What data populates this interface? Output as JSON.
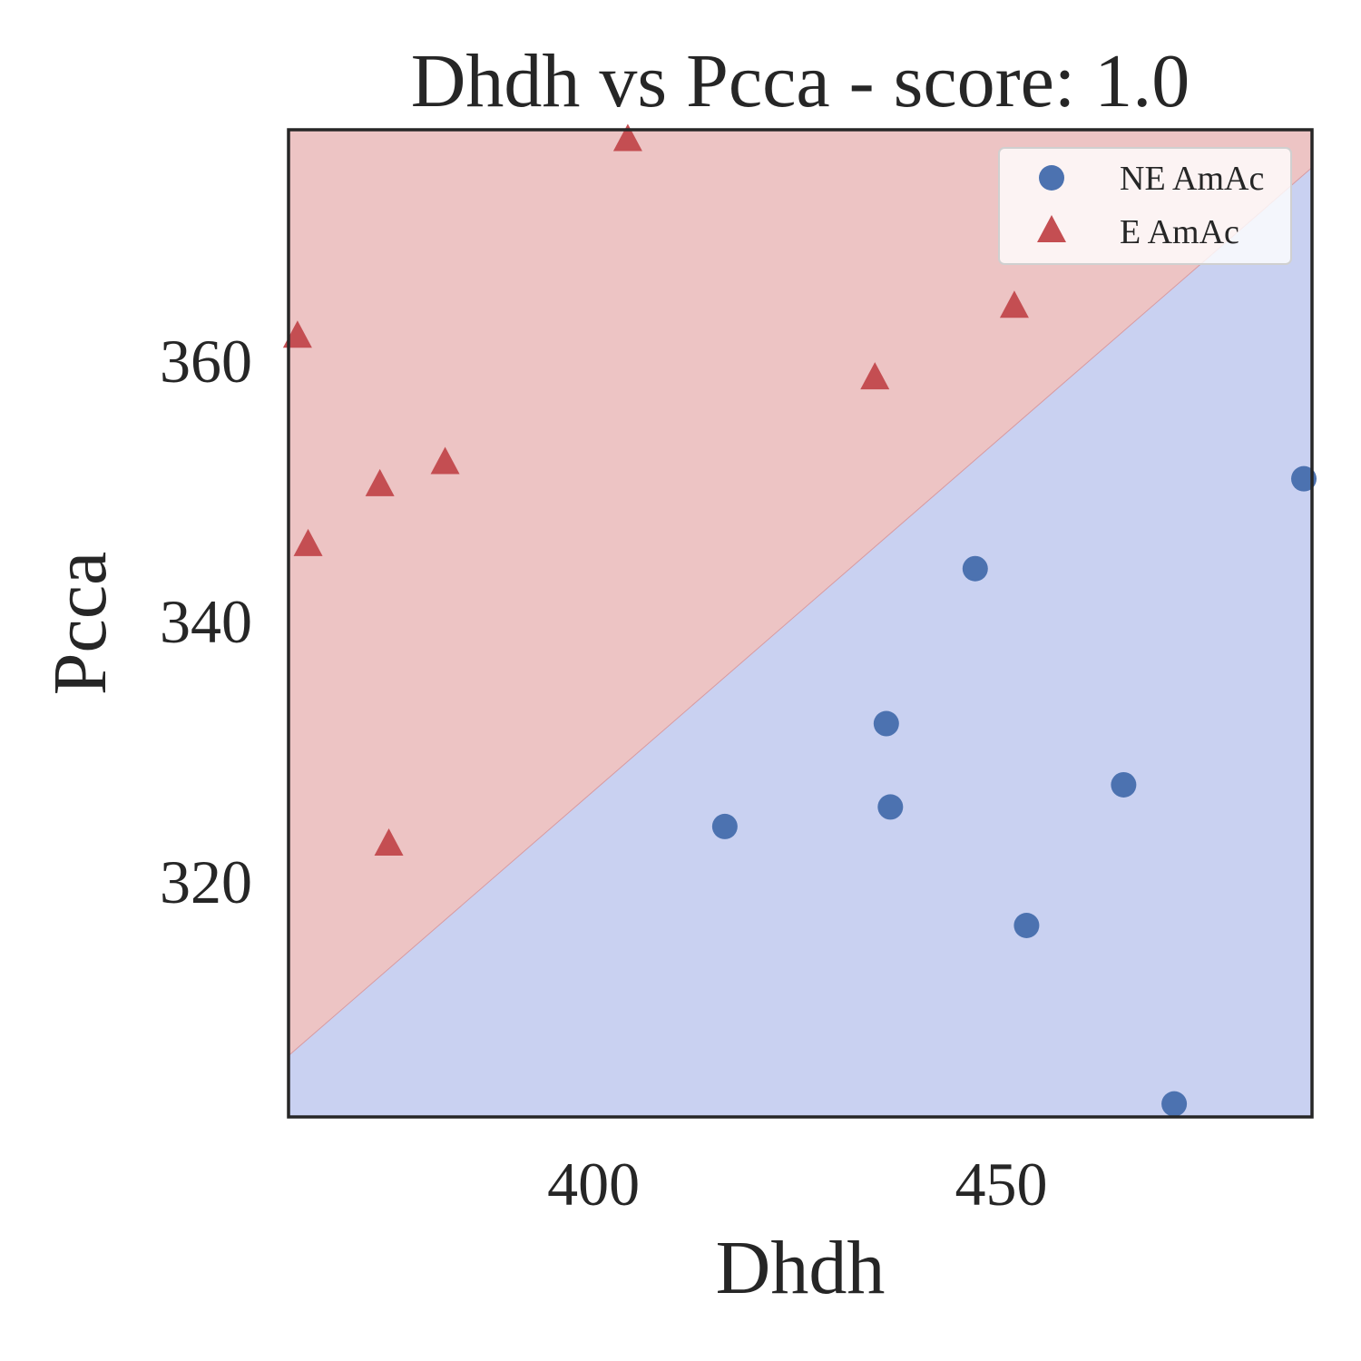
{
  "chart_data": {
    "type": "scatter",
    "title": "Dhdh vs Pcca - score: 1.0",
    "xlabel": "Dhdh",
    "ylabel": "Pcca",
    "xlim": [
      362.6,
      488.1
    ],
    "ylim": [
      301.9,
      377.7
    ],
    "xticks": [
      400,
      450
    ],
    "yticks": [
      320,
      340,
      360
    ],
    "grid": false,
    "legend_position": "top-right",
    "decision_boundary": {
      "from": [
        362.6,
        306.6
      ],
      "to": [
        488.1,
        374.8
      ],
      "upper_region": "E AmAc",
      "lower_region": "NE AmAc"
    },
    "region_colors": {
      "E AmAc": "#edc4c4",
      "NE AmAc": "#c9d1f1"
    },
    "series": [
      {
        "name": "NE AmAc",
        "marker": "circle",
        "color": "#4c72b0",
        "points": [
          {
            "x": 416.1,
            "y": 324.2
          },
          {
            "x": 435.9,
            "y": 332.1
          },
          {
            "x": 436.4,
            "y": 325.7
          },
          {
            "x": 446.8,
            "y": 344.0
          },
          {
            "x": 453.1,
            "y": 316.6
          },
          {
            "x": 465.0,
            "y": 327.4
          },
          {
            "x": 471.2,
            "y": 302.9
          },
          {
            "x": 487.1,
            "y": 350.9
          }
        ]
      },
      {
        "name": "E AmAc",
        "marker": "triangle",
        "color": "#c44e52",
        "points": [
          {
            "x": 363.7,
            "y": 361.8
          },
          {
            "x": 365.0,
            "y": 345.8
          },
          {
            "x": 373.8,
            "y": 350.4
          },
          {
            "x": 374.9,
            "y": 322.8
          },
          {
            "x": 381.8,
            "y": 352.1
          },
          {
            "x": 404.2,
            "y": 376.9
          },
          {
            "x": 434.5,
            "y": 358.6
          },
          {
            "x": 451.6,
            "y": 364.1
          }
        ]
      }
    ]
  }
}
